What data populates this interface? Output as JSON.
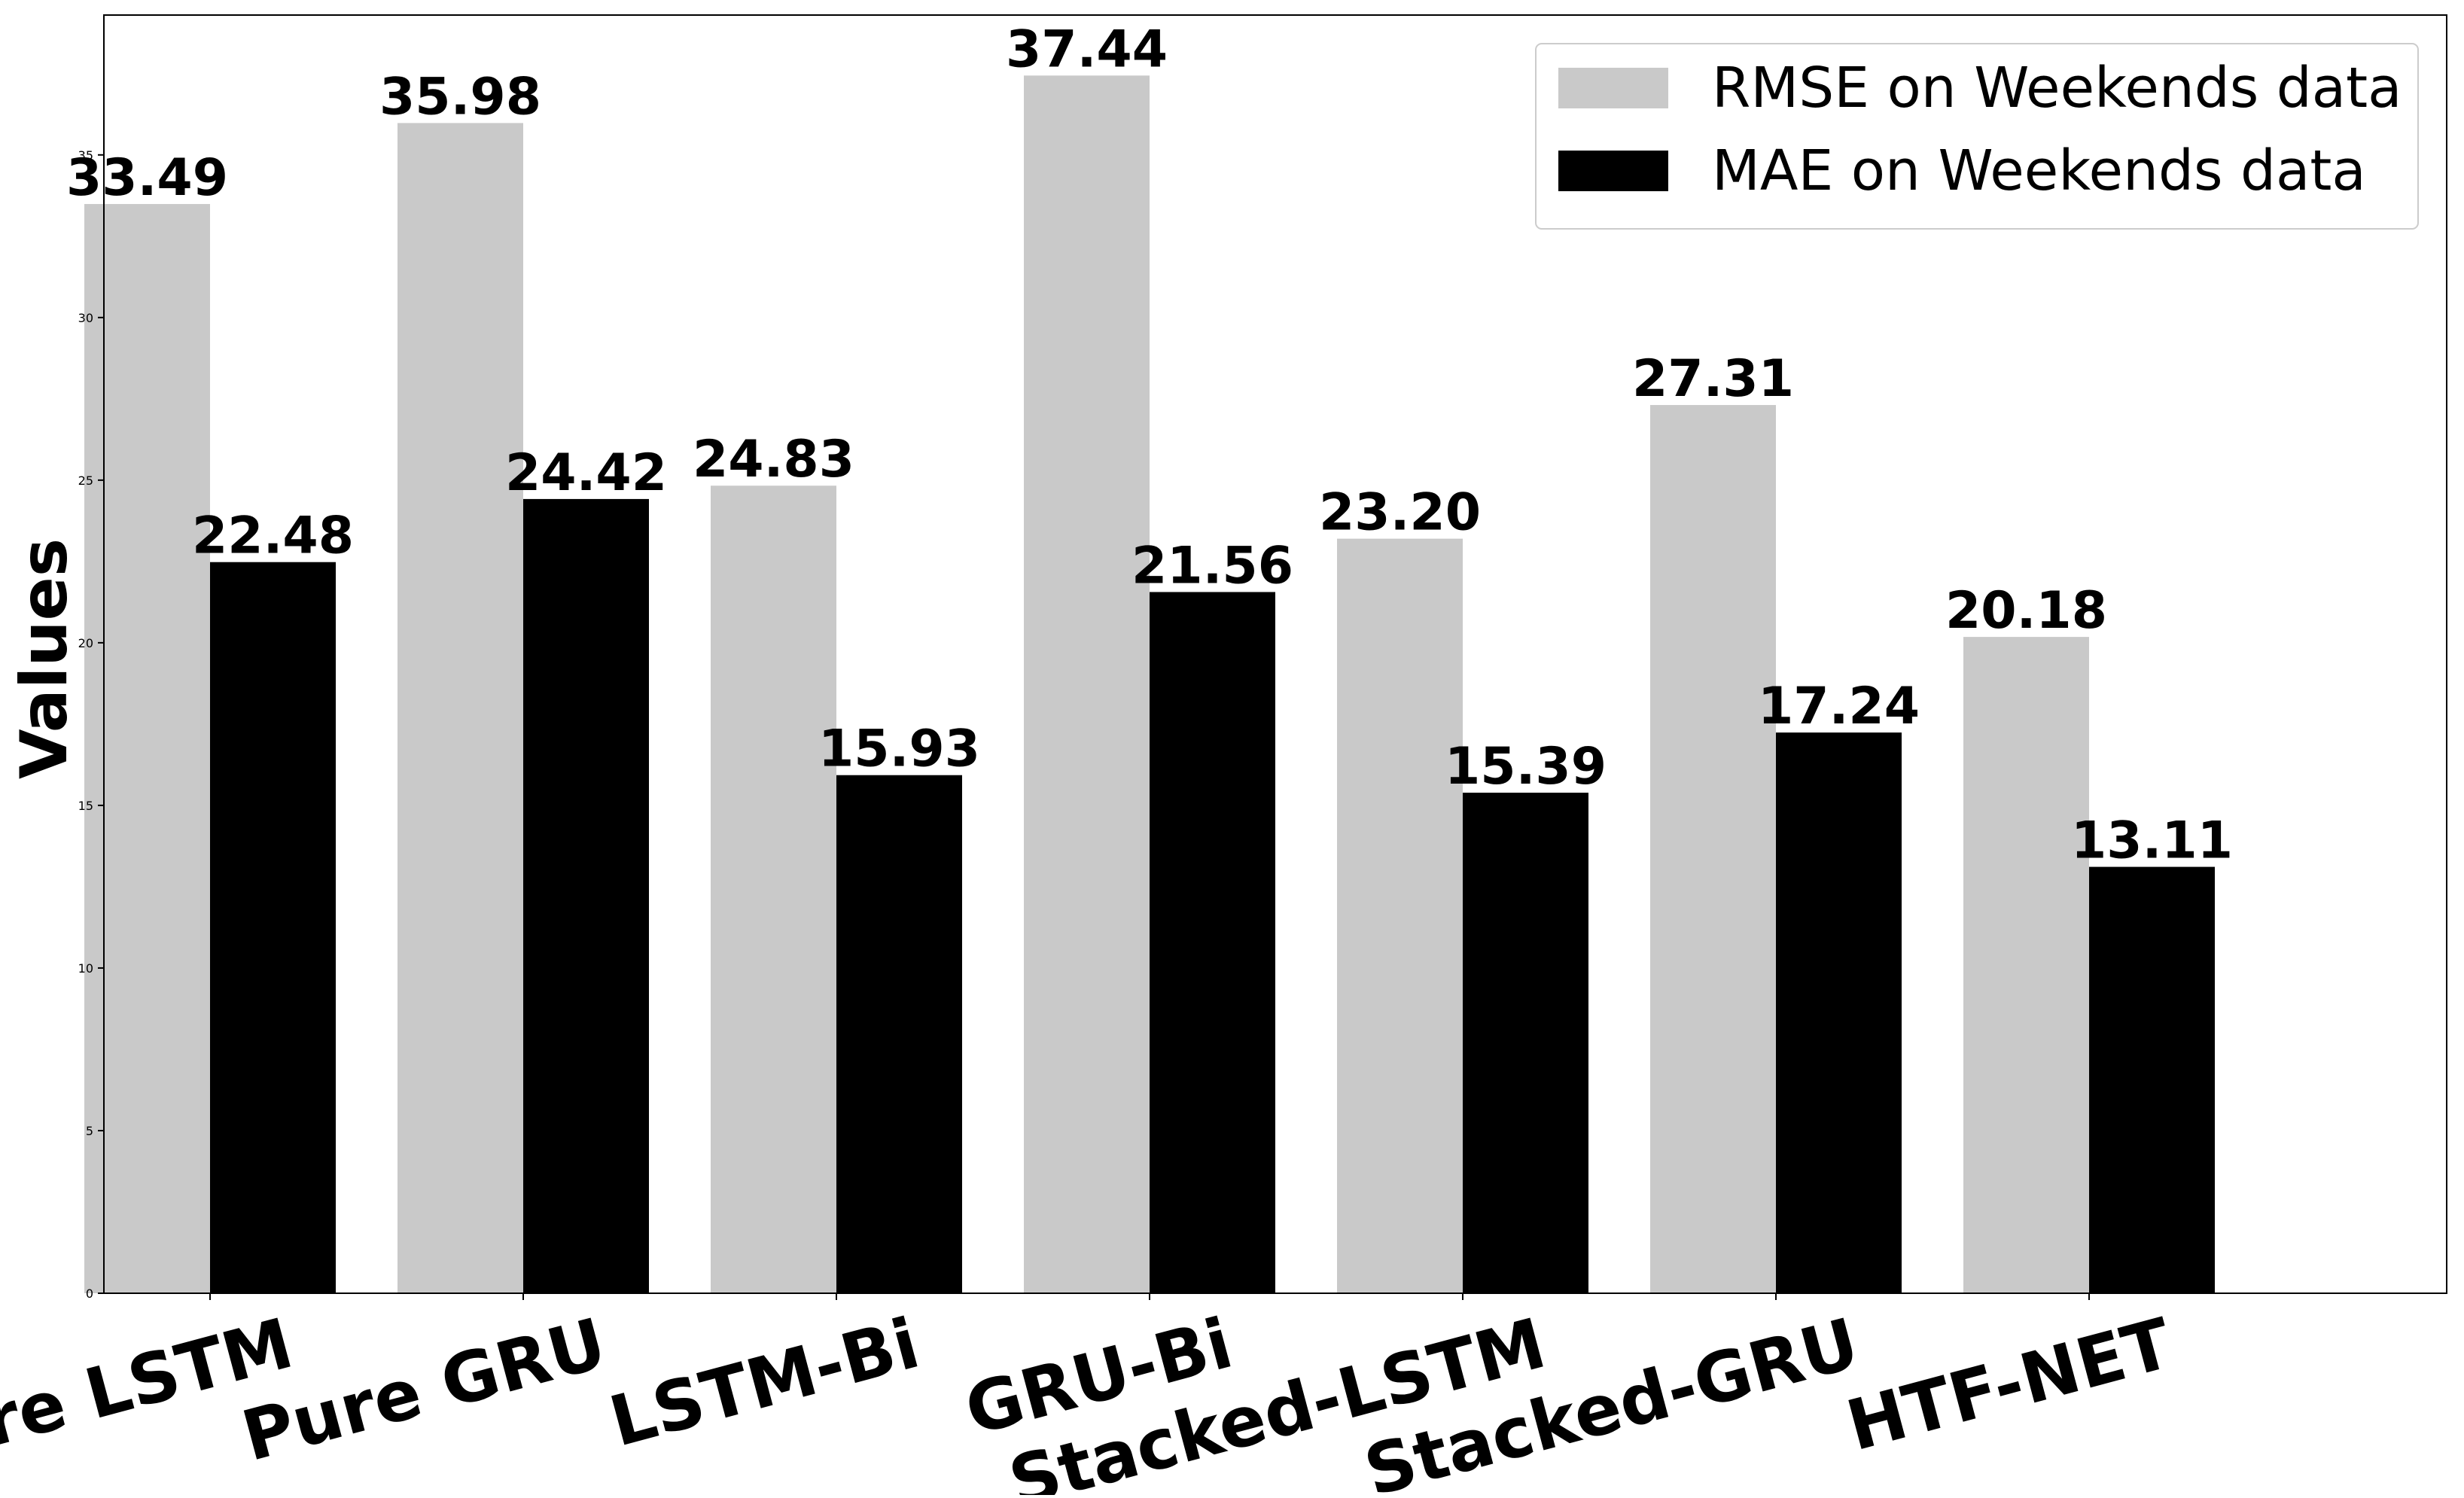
{
  "chart_data": {
    "type": "bar",
    "title": "",
    "xlabel": "",
    "ylabel": "Values",
    "ylim": [
      0,
      39.3
    ],
    "yticks": [
      0,
      5,
      10,
      15,
      20,
      25,
      30,
      35
    ],
    "categories": [
      "Pure LSTM",
      "Pure GRU",
      "LSTM-Bi",
      "GRU-Bi",
      "Stacked-LSTM",
      "Stacked-GRU",
      "HTF-NET"
    ],
    "series": [
      {
        "name": "RMSE on Weekends data",
        "color": "#c9c9c9",
        "values": [
          33.49,
          35.98,
          24.83,
          37.44,
          23.2,
          27.31,
          20.18
        ],
        "labels": [
          "33.49",
          "35.98",
          "24.83",
          "37.44",
          "23.20",
          "27.31",
          "20.18"
        ]
      },
      {
        "name": "MAE on Weekends data",
        "color": "#000000",
        "values": [
          22.48,
          24.42,
          15.93,
          21.56,
          15.39,
          17.24,
          13.11
        ],
        "labels": [
          "22.48",
          "24.42",
          "15.93",
          "21.56",
          "15.39",
          "17.24",
          "13.11"
        ]
      }
    ],
    "legend": {
      "position": "upper right",
      "entries": [
        "RMSE on Weekends data",
        "MAE on Weekends data"
      ]
    },
    "grid": false
  }
}
